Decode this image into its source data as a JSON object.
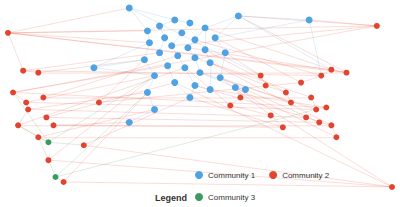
{
  "chart_data": {
    "type": "graph",
    "legend_title": "Legend",
    "legend": "bottom",
    "tick_labels": false,
    "series": [
      {
        "name": "Community 1",
        "color": "#4fa3e3"
      },
      {
        "name": "Community 2",
        "color": "#e2442f"
      },
      {
        "name": "Community 3",
        "color": "#3c9a5f"
      }
    ],
    "nodes": [
      [
        130,
        10,
        0
      ],
      [
        238,
        18,
        0
      ],
      [
        175,
        22,
        0
      ],
      [
        190,
        25,
        0
      ],
      [
        160,
        28,
        0
      ],
      [
        148,
        33,
        0
      ],
      [
        205,
        30,
        0
      ],
      [
        182,
        35,
        0
      ],
      [
        165,
        40,
        0
      ],
      [
        195,
        42,
        0
      ],
      [
        215,
        40,
        0
      ],
      [
        150,
        45,
        0
      ],
      [
        172,
        48,
        0
      ],
      [
        188,
        50,
        0
      ],
      [
        205,
        52,
        0
      ],
      [
        160,
        55,
        0
      ],
      [
        225,
        55,
        0
      ],
      [
        178,
        58,
        0
      ],
      [
        195,
        60,
        0
      ],
      [
        145,
        62,
        0
      ],
      [
        210,
        65,
        0
      ],
      [
        168,
        68,
        0
      ],
      [
        185,
        70,
        0
      ],
      [
        200,
        75,
        0
      ],
      [
        155,
        78,
        0
      ],
      [
        220,
        80,
        0
      ],
      [
        175,
        85,
        0
      ],
      [
        195,
        88,
        0
      ],
      [
        235,
        90,
        0
      ],
      [
        148,
        95,
        0
      ],
      [
        210,
        92,
        0
      ],
      [
        245,
        92,
        0
      ],
      [
        130,
        125,
        0
      ],
      [
        155,
        112,
        0
      ],
      [
        190,
        100,
        0
      ],
      [
        308,
        22,
        0
      ],
      [
        95,
        70,
        0
      ],
      [
        10,
        35,
        1
      ],
      [
        25,
        73,
        1
      ],
      [
        40,
        75,
        1
      ],
      [
        15,
        95,
        1
      ],
      [
        28,
        105,
        1
      ],
      [
        45,
        100,
        1
      ],
      [
        30,
        112,
        1
      ],
      [
        48,
        120,
        1
      ],
      [
        20,
        128,
        1
      ],
      [
        40,
        140,
        1
      ],
      [
        55,
        128,
        1
      ],
      [
        50,
        163,
        1
      ],
      [
        85,
        148,
        1
      ],
      [
        65,
        185,
        1
      ],
      [
        100,
        105,
        1
      ],
      [
        260,
        78,
        1
      ],
      [
        240,
        100,
        1
      ],
      [
        265,
        88,
        1
      ],
      [
        285,
        95,
        1
      ],
      [
        290,
        105,
        1
      ],
      [
        300,
        85,
        1
      ],
      [
        320,
        78,
        1
      ],
      [
        330,
        72,
        1
      ],
      [
        345,
        75,
        1
      ],
      [
        310,
        100,
        1
      ],
      [
        315,
        112,
        1
      ],
      [
        325,
        110,
        1
      ],
      [
        305,
        120,
        1
      ],
      [
        318,
        125,
        1
      ],
      [
        330,
        128,
        1
      ],
      [
        335,
        140,
        1
      ],
      [
        282,
        130,
        1
      ],
      [
        390,
        190,
        1
      ],
      [
        375,
        28,
        1
      ],
      [
        230,
        108,
        1
      ],
      [
        270,
        118,
        1
      ],
      [
        50,
        145,
        2
      ],
      [
        57,
        180,
        2
      ]
    ],
    "edges": [
      [
        0,
        2
      ],
      [
        0,
        5
      ],
      [
        1,
        6
      ],
      [
        1,
        10
      ],
      [
        2,
        3
      ],
      [
        2,
        4
      ],
      [
        3,
        7
      ],
      [
        4,
        5
      ],
      [
        4,
        8
      ],
      [
        5,
        11
      ],
      [
        6,
        9
      ],
      [
        6,
        14
      ],
      [
        7,
        12
      ],
      [
        8,
        15
      ],
      [
        9,
        13
      ],
      [
        10,
        16
      ],
      [
        11,
        19
      ],
      [
        12,
        17
      ],
      [
        13,
        18
      ],
      [
        14,
        20
      ],
      [
        15,
        21
      ],
      [
        16,
        25
      ],
      [
        17,
        22
      ],
      [
        18,
        23
      ],
      [
        19,
        24
      ],
      [
        20,
        30
      ],
      [
        21,
        26
      ],
      [
        22,
        27
      ],
      [
        23,
        28
      ],
      [
        24,
        29
      ],
      [
        25,
        31
      ],
      [
        26,
        34
      ],
      [
        27,
        30
      ],
      [
        28,
        31
      ],
      [
        29,
        33
      ],
      [
        32,
        33
      ],
      [
        34,
        27
      ],
      [
        35,
        1
      ],
      [
        35,
        10
      ],
      [
        36,
        11
      ],
      [
        36,
        19
      ],
      [
        36,
        24
      ],
      [
        37,
        5
      ],
      [
        37,
        0
      ],
      [
        37,
        11
      ],
      [
        38,
        15
      ],
      [
        39,
        19
      ],
      [
        40,
        21
      ],
      [
        41,
        24
      ],
      [
        42,
        17
      ],
      [
        43,
        29
      ],
      [
        44,
        26
      ],
      [
        45,
        22
      ],
      [
        46,
        33
      ],
      [
        47,
        32
      ],
      [
        48,
        24
      ],
      [
        49,
        34
      ],
      [
        50,
        29
      ],
      [
        51,
        19
      ],
      [
        52,
        16
      ],
      [
        53,
        28
      ],
      [
        54,
        20
      ],
      [
        55,
        14
      ],
      [
        56,
        25
      ],
      [
        57,
        10
      ],
      [
        58,
        9
      ],
      [
        59,
        6
      ],
      [
        60,
        1
      ],
      [
        60,
        13
      ],
      [
        61,
        18
      ],
      [
        62,
        23
      ],
      [
        63,
        30
      ],
      [
        64,
        27
      ],
      [
        65,
        31
      ],
      [
        66,
        20
      ],
      [
        67,
        28
      ],
      [
        68,
        34
      ],
      [
        69,
        28
      ],
      [
        69,
        26
      ],
      [
        70,
        35
      ],
      [
        70,
        1
      ],
      [
        70,
        12
      ],
      [
        71,
        22
      ],
      [
        72,
        25
      ],
      [
        0,
        52
      ],
      [
        1,
        59
      ],
      [
        35,
        58
      ],
      [
        37,
        70
      ],
      [
        38,
        58
      ],
      [
        39,
        60
      ],
      [
        40,
        63
      ],
      [
        41,
        62
      ],
      [
        42,
        61
      ],
      [
        43,
        64
      ],
      [
        44,
        65
      ],
      [
        45,
        66
      ],
      [
        46,
        67
      ],
      [
        47,
        68
      ],
      [
        48,
        69
      ],
      [
        49,
        69
      ],
      [
        50,
        69
      ],
      [
        51,
        57
      ],
      [
        37,
        38
      ],
      [
        38,
        39
      ],
      [
        40,
        41
      ],
      [
        41,
        43
      ],
      [
        43,
        45
      ],
      [
        45,
        46
      ],
      [
        46,
        48
      ],
      [
        52,
        54
      ],
      [
        54,
        55
      ],
      [
        55,
        56
      ],
      [
        57,
        58
      ],
      [
        58,
        59
      ],
      [
        59,
        60
      ],
      [
        61,
        62
      ],
      [
        62,
        63
      ],
      [
        64,
        65
      ],
      [
        65,
        66
      ],
      [
        66,
        67
      ],
      [
        68,
        72
      ],
      [
        71,
        72
      ],
      [
        71,
        53
      ],
      [
        37,
        59
      ],
      [
        37,
        60
      ],
      [
        40,
        70
      ],
      [
        73,
        46
      ],
      [
        73,
        45
      ],
      [
        74,
        48
      ],
      [
        74,
        50
      ],
      [
        73,
        49
      ],
      [
        74,
        62
      ],
      [
        73,
        40
      ],
      [
        73,
        24
      ],
      [
        74,
        29
      ]
    ]
  }
}
